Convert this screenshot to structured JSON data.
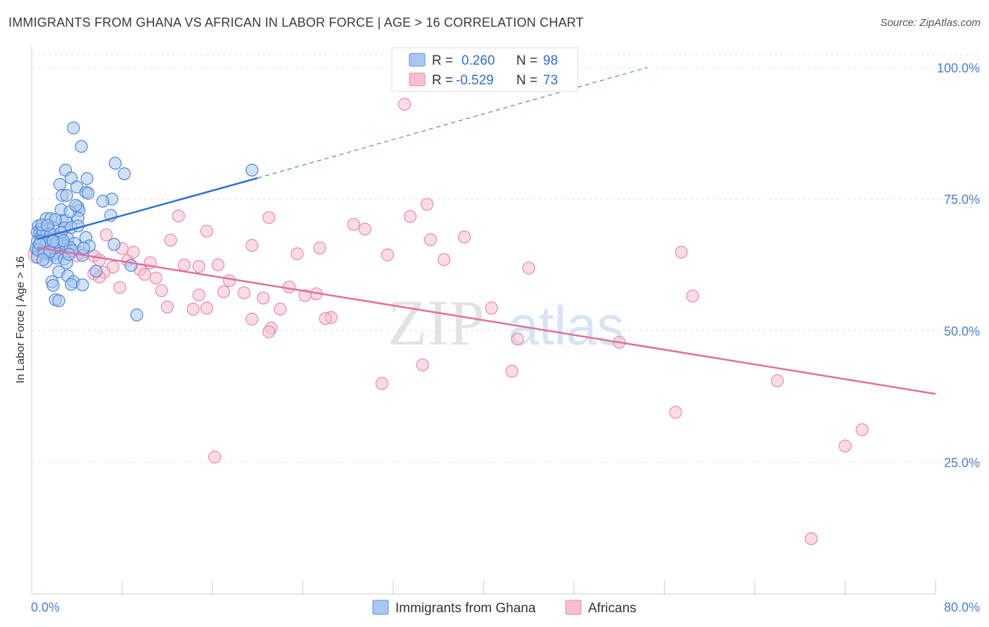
{
  "title": "IMMIGRANTS FROM GHANA VS AFRICAN IN LABOR FORCE | AGE > 16 CORRELATION CHART",
  "source": "Source: ZipAtlas.com",
  "watermark": {
    "zip": "ZIP",
    "atlas": "atlas"
  },
  "legend": {
    "r_label": "R =",
    "n_label": "N =",
    "rows": [
      {
        "r": "0.260",
        "n": "98",
        "color": "#a9c8f0",
        "stroke": "#5b8fd6"
      },
      {
        "r": "-0.529",
        "n": "73",
        "color": "#f7bfd0",
        "stroke": "#e68aa8"
      }
    ]
  },
  "chart_data": {
    "type": "scatter",
    "ylabel": "In Labor Force | Age > 16",
    "xlim": [
      0,
      80
    ],
    "ylim": [
      0,
      104
    ],
    "y_ticks": [
      {
        "value": 25,
        "label": "25.0%"
      },
      {
        "value": 50,
        "label": "50.0%"
      },
      {
        "value": 75,
        "label": "75.0%"
      },
      {
        "value": 100,
        "label": "100.0%"
      }
    ],
    "x_tick_labels": [
      {
        "value": 0,
        "label": "0.0%"
      },
      {
        "value": 80,
        "label": "80.0%"
      }
    ],
    "x_minor_ticks": [
      0,
      8,
      16,
      24,
      32,
      40,
      48,
      56,
      64,
      72,
      80
    ],
    "grid": true,
    "series": [
      {
        "name": "Immigrants from Ghana",
        "color": "#a9c8f0",
        "stroke": "#4f86d4",
        "trend": {
          "x0": 0.5,
          "y0": 67.4,
          "x1": 20,
          "y1": 79.0,
          "dash_x1": 54.5,
          "dash_y1": 100.0,
          "color": "#2d6fd4"
        },
        "points": [
          [
            3.7,
            88.5
          ],
          [
            4.4,
            85.0
          ],
          [
            7.4,
            81.8
          ],
          [
            8.2,
            79.8
          ],
          [
            3.0,
            80.5
          ],
          [
            4.9,
            78.9
          ],
          [
            3.5,
            79.0
          ],
          [
            2.5,
            77.8
          ],
          [
            4.0,
            77.3
          ],
          [
            4.8,
            76.3
          ],
          [
            2.7,
            75.7
          ],
          [
            3.1,
            75.7
          ],
          [
            7.1,
            75.0
          ],
          [
            6.3,
            74.6
          ],
          [
            4.1,
            73.5
          ],
          [
            2.6,
            73.0
          ],
          [
            4.2,
            72.8
          ],
          [
            7.0,
            71.9
          ],
          [
            1.3,
            71.3
          ],
          [
            1.7,
            71.3
          ],
          [
            2.7,
            70.9
          ],
          [
            3.0,
            70.9
          ],
          [
            4.1,
            71.4
          ],
          [
            0.6,
            69.9
          ],
          [
            0.8,
            69.3
          ],
          [
            1.5,
            69.4
          ],
          [
            1.1,
            69.0
          ],
          [
            1.9,
            69.6
          ],
          [
            0.5,
            68.7
          ],
          [
            2.9,
            69.5
          ],
          [
            3.5,
            69.6
          ],
          [
            0.7,
            68.5
          ],
          [
            0.9,
            68.1
          ],
          [
            1.2,
            67.9
          ],
          [
            1.0,
            67.3
          ],
          [
            0.5,
            66.9
          ],
          [
            1.6,
            67.4
          ],
          [
            2.5,
            67.7
          ],
          [
            3.2,
            67.5
          ],
          [
            4.8,
            67.7
          ],
          [
            0.6,
            66.1
          ],
          [
            0.9,
            66.5
          ],
          [
            1.4,
            65.9
          ],
          [
            2.1,
            66.3
          ],
          [
            2.8,
            66.6
          ],
          [
            3.0,
            66.1
          ],
          [
            3.8,
            66.6
          ],
          [
            5.1,
            66.1
          ],
          [
            0.4,
            65.6
          ],
          [
            1.2,
            65.1
          ],
          [
            2.3,
            64.7
          ],
          [
            3.4,
            65.8
          ],
          [
            1.8,
            64.3
          ],
          [
            0.5,
            64.0
          ],
          [
            1.5,
            64.5
          ],
          [
            2.2,
            63.8
          ],
          [
            2.9,
            63.6
          ],
          [
            4.5,
            64.3
          ],
          [
            1.3,
            63.1
          ],
          [
            3.1,
            62.9
          ],
          [
            7.3,
            66.4
          ],
          [
            8.8,
            62.4
          ],
          [
            5.7,
            61.3
          ],
          [
            2.4,
            61.2
          ],
          [
            3.2,
            60.4
          ],
          [
            1.8,
            59.3
          ],
          [
            3.7,
            59.3
          ],
          [
            3.5,
            58.8
          ],
          [
            4.5,
            58.7
          ],
          [
            1.9,
            58.6
          ],
          [
            2.1,
            55.9
          ],
          [
            2.4,
            55.7
          ],
          [
            9.3,
            53.0
          ],
          [
            19.5,
            80.5
          ],
          [
            1.0,
            68.9
          ],
          [
            1.7,
            68.3
          ],
          [
            2.6,
            68.6
          ],
          [
            0.8,
            67.0
          ],
          [
            1.3,
            66.7
          ],
          [
            2.0,
            65.7
          ],
          [
            3.6,
            65.2
          ],
          [
            0.6,
            65.3
          ],
          [
            1.1,
            64.8
          ],
          [
            4.1,
            69.9
          ],
          [
            3.4,
            72.6
          ],
          [
            2.1,
            71.1
          ],
          [
            5.0,
            76.1
          ],
          [
            0.9,
            70.1
          ],
          [
            1.4,
            70.0
          ],
          [
            3.9,
            73.8
          ],
          [
            2.2,
            66.8
          ],
          [
            1.6,
            65.0
          ],
          [
            0.7,
            66.5
          ],
          [
            2.8,
            67.1
          ],
          [
            3.3,
            64.5
          ],
          [
            1.0,
            63.5
          ],
          [
            4.6,
            65.7
          ],
          [
            1.9,
            67.0
          ]
        ]
      },
      {
        "name": "Africans",
        "color": "#f7bfd0",
        "stroke": "#e68aa8",
        "trend": {
          "x0": 0.5,
          "y0": 65.8,
          "x1": 80,
          "y1": 38.0,
          "color": "#e0709a"
        },
        "points": [
          [
            33.0,
            93.0
          ],
          [
            35.0,
            74.0
          ],
          [
            13.0,
            71.8
          ],
          [
            21.0,
            71.5
          ],
          [
            33.5,
            71.7
          ],
          [
            28.5,
            70.2
          ],
          [
            29.5,
            69.3
          ],
          [
            15.5,
            68.9
          ],
          [
            6.6,
            68.2
          ],
          [
            35.3,
            67.3
          ],
          [
            38.3,
            67.8
          ],
          [
            12.3,
            67.2
          ],
          [
            19.5,
            66.2
          ],
          [
            25.5,
            65.7
          ],
          [
            8.0,
            65.6
          ],
          [
            23.5,
            64.6
          ],
          [
            31.5,
            64.4
          ],
          [
            57.5,
            64.9
          ],
          [
            0.5,
            64.5
          ],
          [
            3.0,
            65.5
          ],
          [
            4.5,
            64.8
          ],
          [
            5.5,
            64.2
          ],
          [
            6.0,
            63.4
          ],
          [
            8.5,
            63.3
          ],
          [
            10.5,
            62.9
          ],
          [
            13.5,
            62.5
          ],
          [
            16.5,
            62.5
          ],
          [
            14.8,
            62.2
          ],
          [
            7.2,
            62.1
          ],
          [
            6.4,
            61.1
          ],
          [
            9.6,
            61.6
          ],
          [
            10.0,
            60.7
          ],
          [
            11.0,
            60.0
          ],
          [
            17.5,
            59.5
          ],
          [
            5.5,
            60.8
          ],
          [
            7.8,
            58.2
          ],
          [
            11.5,
            57.6
          ],
          [
            17.0,
            57.4
          ],
          [
            18.8,
            57.2
          ],
          [
            22.8,
            58.3
          ],
          [
            25.2,
            57.0
          ],
          [
            24.2,
            56.7
          ],
          [
            14.8,
            56.8
          ],
          [
            20.5,
            56.2
          ],
          [
            12.0,
            54.5
          ],
          [
            15.5,
            54.3
          ],
          [
            14.3,
            54.1
          ],
          [
            22.0,
            54.1
          ],
          [
            19.5,
            52.2
          ],
          [
            26.5,
            52.5
          ],
          [
            21.2,
            50.5
          ],
          [
            21.0,
            49.8
          ],
          [
            44.0,
            61.9
          ],
          [
            40.7,
            54.3
          ],
          [
            58.5,
            56.6
          ],
          [
            43.0,
            48.4
          ],
          [
            52.0,
            47.8
          ],
          [
            34.6,
            43.5
          ],
          [
            42.5,
            42.3
          ],
          [
            31.0,
            40.0
          ],
          [
            66.0,
            40.5
          ],
          [
            57.0,
            34.5
          ],
          [
            73.5,
            31.2
          ],
          [
            72.0,
            28.1
          ],
          [
            16.2,
            26.0
          ],
          [
            69.0,
            10.5
          ],
          [
            2.5,
            66.5
          ],
          [
            1.5,
            65.2
          ],
          [
            4.0,
            64.2
          ],
          [
            9.0,
            64.9
          ],
          [
            6.0,
            60.2
          ],
          [
            26.0,
            52.3
          ],
          [
            36.5,
            63.5
          ]
        ]
      }
    ]
  }
}
